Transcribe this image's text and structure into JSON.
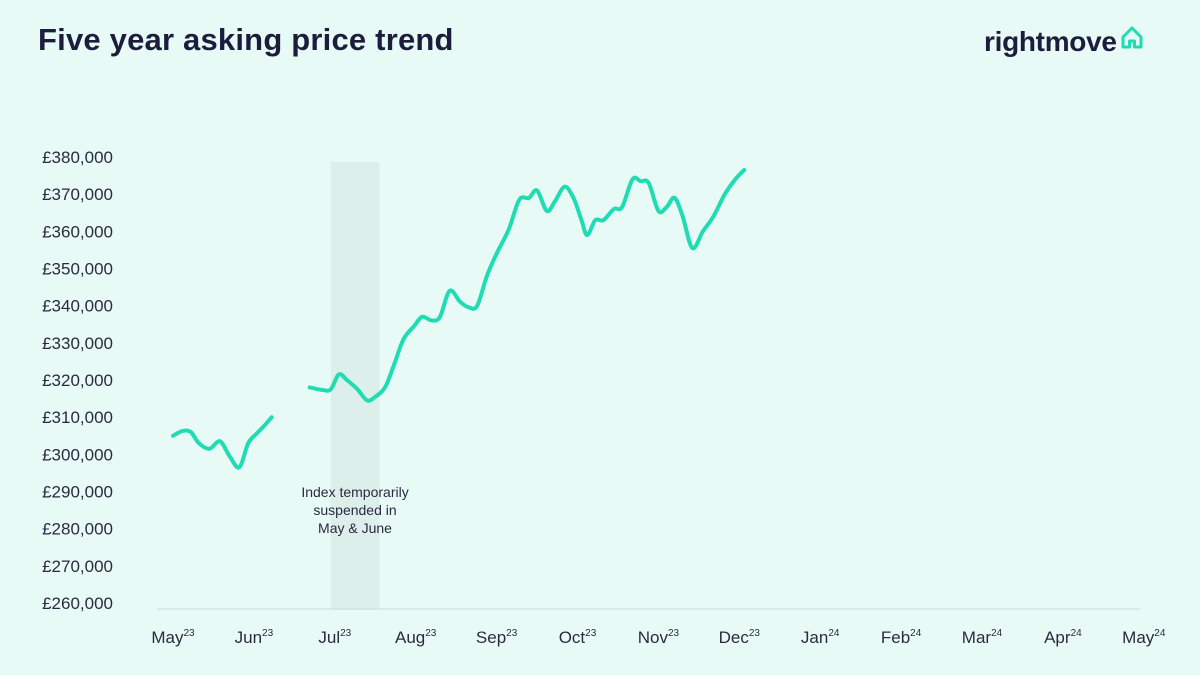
{
  "header": {
    "title": "Five year asking price trend",
    "logo_text": "rightmove",
    "logo_icon": "house-icon"
  },
  "colors": {
    "background": "#e8faf5",
    "line": "#1fdcb3",
    "suspension_band": "#dcefea",
    "axis": "#c8dcd7",
    "title": "#1c1c3c"
  },
  "chart_data": {
    "type": "line",
    "title": "Five year asking price trend",
    "xlabel": "",
    "ylabel": "",
    "ylim": [
      260000,
      380000
    ],
    "yticks": [
      {
        "value": 380000,
        "label": "£380,000"
      },
      {
        "value": 370000,
        "label": "£370,000"
      },
      {
        "value": 360000,
        "label": "£360,000"
      },
      {
        "value": 350000,
        "label": "£350,000"
      },
      {
        "value": 340000,
        "label": "£340,000"
      },
      {
        "value": 330000,
        "label": "£330,000"
      },
      {
        "value": 320000,
        "label": "£320,000"
      },
      {
        "value": 310000,
        "label": "£310,000"
      },
      {
        "value": 300000,
        "label": "£300,000"
      },
      {
        "value": 290000,
        "label": "£290,000"
      },
      {
        "value": 280000,
        "label": "£280,000"
      },
      {
        "value": 270000,
        "label": "£270,000"
      },
      {
        "value": 260000,
        "label": "£260,000"
      }
    ],
    "xticks": [
      {
        "value": 0,
        "month": "May",
        "year": "23"
      },
      {
        "value": 1,
        "month": "Jun",
        "year": "23"
      },
      {
        "value": 2,
        "month": "Jul",
        "year": "23"
      },
      {
        "value": 3,
        "month": "Aug",
        "year": "23"
      },
      {
        "value": 4,
        "month": "Sep",
        "year": "23"
      },
      {
        "value": 5,
        "month": "Oct",
        "year": "23"
      },
      {
        "value": 6,
        "month": "Nov",
        "year": "23"
      },
      {
        "value": 7,
        "month": "Dec",
        "year": "23"
      },
      {
        "value": 8,
        "month": "Jan",
        "year": "24"
      },
      {
        "value": 9,
        "month": "Feb",
        "year": "24"
      },
      {
        "value": 10,
        "month": "Mar",
        "year": "24"
      },
      {
        "value": 11,
        "month": "Apr",
        "year": "24"
      },
      {
        "value": 12,
        "month": "May",
        "year": "24"
      }
    ],
    "suspended_range": [
      1.95,
      2.55
    ],
    "annotation": [
      "Index temporarily",
      "suspended in",
      "May & June"
    ],
    "grid": false,
    "series": [
      {
        "segments": [
          [
            [
              0.0,
              305000
            ],
            [
              0.12,
              306300
            ],
            [
              0.22,
              306000
            ],
            [
              0.32,
              303000
            ],
            [
              0.45,
              301500
            ],
            [
              0.58,
              303500
            ],
            [
              0.7,
              299500
            ],
            [
              0.82,
              296500
            ],
            [
              0.93,
              303000
            ],
            [
              1.03,
              305500
            ],
            [
              1.12,
              307500
            ],
            [
              1.22,
              310000
            ]
          ],
          [
            [
              1.69,
              318000
            ],
            [
              1.85,
              317300
            ],
            [
              1.95,
              317500
            ],
            [
              2.05,
              321500
            ],
            [
              2.15,
              320000
            ],
            [
              2.28,
              317500
            ],
            [
              2.4,
              314500
            ],
            [
              2.5,
              315500
            ],
            [
              2.62,
              318000
            ],
            [
              2.73,
              324000
            ],
            [
              2.85,
              331000
            ],
            [
              2.98,
              334500
            ],
            [
              3.08,
              337000
            ],
            [
              3.2,
              336000
            ],
            [
              3.3,
              337000
            ],
            [
              3.42,
              344000
            ],
            [
              3.55,
              341000
            ],
            [
              3.66,
              339500
            ],
            [
              3.76,
              340000
            ],
            [
              3.88,
              348000
            ],
            [
              4.0,
              354000
            ],
            [
              4.15,
              360500
            ],
            [
              4.28,
              368500
            ],
            [
              4.4,
              369000
            ],
            [
              4.5,
              371000
            ],
            [
              4.62,
              365500
            ],
            [
              4.72,
              368000
            ],
            [
              4.84,
              372000
            ],
            [
              4.95,
              369000
            ],
            [
              5.05,
              363000
            ],
            [
              5.12,
              359000
            ],
            [
              5.22,
              363000
            ],
            [
              5.32,
              363000
            ],
            [
              5.45,
              366000
            ],
            [
              5.55,
              366500
            ],
            [
              5.68,
              374000
            ],
            [
              5.78,
              373500
            ],
            [
              5.88,
              373000
            ],
            [
              6.0,
              365500
            ],
            [
              6.1,
              366500
            ],
            [
              6.2,
              369000
            ],
            [
              6.3,
              364000
            ],
            [
              6.42,
              355500
            ],
            [
              6.55,
              360000
            ],
            [
              6.68,
              364000
            ],
            [
              6.82,
              370000
            ],
            [
              6.95,
              374000
            ],
            [
              7.06,
              376500
            ]
          ]
        ]
      }
    ]
  }
}
